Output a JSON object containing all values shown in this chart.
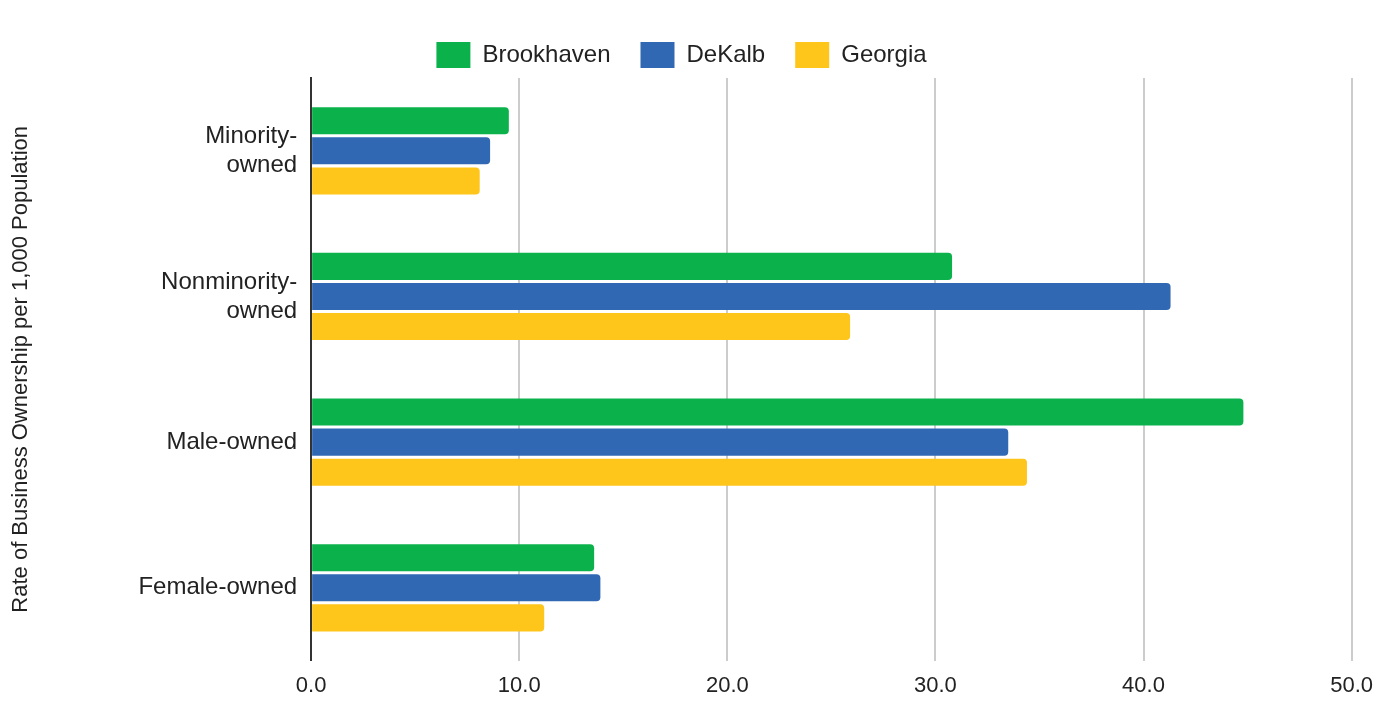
{
  "chart_data": {
    "type": "bar",
    "orientation": "horizontal",
    "ylabel": "Rate of Business Ownership per 1,000 Population",
    "categories": [
      "Minority-owned",
      "Nonminority-owned",
      "Male-owned",
      "Female-owned"
    ],
    "series": [
      {
        "name": "Brookhaven",
        "color": "#0bb24c",
        "values": [
          9.5,
          30.8,
          44.8,
          13.6
        ]
      },
      {
        "name": "DeKalb",
        "color": "#3068b4",
        "values": [
          8.6,
          41.3,
          33.5,
          13.9
        ]
      },
      {
        "name": "Georgia",
        "color": "#fec51b",
        "values": [
          8.1,
          25.9,
          34.4,
          11.2
        ]
      }
    ],
    "xlim": [
      0,
      50
    ],
    "xticks": [
      {
        "value": 0,
        "label": "0.0"
      },
      {
        "value": 10,
        "label": "10.0"
      },
      {
        "value": 20,
        "label": "20.0"
      },
      {
        "value": 30,
        "label": "30.0"
      },
      {
        "value": 40,
        "label": "40.0"
      },
      {
        "value": 50,
        "label": "50.0"
      }
    ],
    "grid": "x",
    "legend": "top"
  }
}
